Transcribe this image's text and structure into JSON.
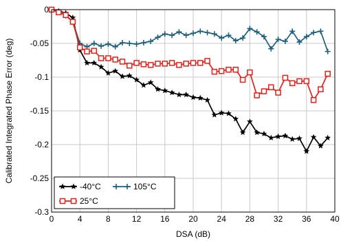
{
  "chart_data": {
    "type": "line",
    "title": "",
    "xlabel": "DSA (dB)",
    "ylabel": "Calibrated Integrated Phase Error (deg)",
    "xlim": [
      0,
      40
    ],
    "ylim": [
      -0.3,
      0
    ],
    "xticks": [
      "0",
      "4",
      "8",
      "12",
      "16",
      "20",
      "24",
      "28",
      "32",
      "36",
      "40"
    ],
    "yticks": [
      "0",
      "-0.05",
      "-0.1",
      "-0.15",
      "-0.2",
      "-0.25",
      "-0.3"
    ],
    "grid": true,
    "legend_position": "bottom-left",
    "x": [
      0,
      1,
      2,
      3,
      4,
      5,
      6,
      7,
      8,
      9,
      10,
      11,
      12,
      13,
      14,
      15,
      16,
      17,
      18,
      19,
      20,
      21,
      22,
      23,
      24,
      25,
      26,
      27,
      28,
      29,
      30,
      31,
      32,
      33,
      34,
      35,
      36,
      37,
      38,
      39
    ],
    "series": [
      {
        "name": "-40°C",
        "color": "#000000",
        "marker": "star",
        "values": [
          0,
          -0.002,
          -0.005,
          -0.012,
          -0.06,
          -0.079,
          -0.079,
          -0.085,
          -0.094,
          -0.091,
          -0.099,
          -0.098,
          -0.104,
          -0.112,
          -0.108,
          -0.118,
          -0.12,
          -0.123,
          -0.126,
          -0.126,
          -0.13,
          -0.131,
          -0.134,
          -0.156,
          -0.153,
          -0.154,
          -0.162,
          -0.182,
          -0.166,
          -0.182,
          -0.184,
          -0.19,
          -0.188,
          -0.187,
          -0.192,
          -0.191,
          -0.21,
          -0.189,
          -0.202,
          -0.19
        ]
      },
      {
        "name": "105°C",
        "color": "#1f5f7a",
        "marker": "plus",
        "values": [
          0,
          -0.003,
          -0.009,
          -0.018,
          -0.05,
          -0.055,
          -0.05,
          -0.054,
          -0.051,
          -0.055,
          -0.049,
          -0.05,
          -0.051,
          -0.049,
          -0.047,
          -0.041,
          -0.036,
          -0.038,
          -0.033,
          -0.038,
          -0.035,
          -0.032,
          -0.034,
          -0.036,
          -0.042,
          -0.038,
          -0.046,
          -0.042,
          -0.028,
          -0.033,
          -0.04,
          -0.058,
          -0.044,
          -0.047,
          -0.032,
          -0.048,
          -0.04,
          -0.034,
          -0.032,
          -0.062
        ]
      },
      {
        "name": "25°C",
        "color": "#e3201b",
        "marker": "square",
        "values": [
          0,
          -0.004,
          -0.008,
          -0.018,
          -0.056,
          -0.062,
          -0.061,
          -0.072,
          -0.072,
          -0.074,
          -0.077,
          -0.083,
          -0.079,
          -0.081,
          -0.082,
          -0.08,
          -0.08,
          -0.079,
          -0.082,
          -0.08,
          -0.079,
          -0.079,
          -0.076,
          -0.092,
          -0.091,
          -0.089,
          -0.089,
          -0.104,
          -0.093,
          -0.127,
          -0.121,
          -0.115,
          -0.123,
          -0.101,
          -0.109,
          -0.106,
          -0.106,
          -0.134,
          -0.118,
          -0.095
        ]
      }
    ]
  }
}
